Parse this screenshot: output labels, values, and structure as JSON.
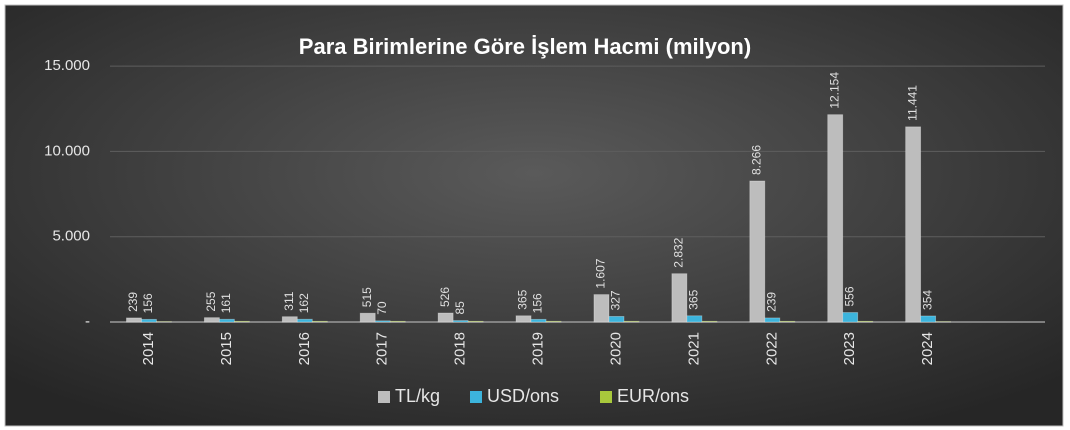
{
  "chart_data": {
    "type": "bar",
    "title": "Para Birimlerine  Göre İşlem Hacmi (milyon)",
    "categories": [
      "2014",
      "2015",
      "2016",
      "2017",
      "2018",
      "2019",
      "2020",
      "2021",
      "2022",
      "2023",
      "2024",
      null
    ],
    "series": [
      {
        "name": "TL/kg",
        "color": "#bdbdbd",
        "values": [
          239,
          255,
          311,
          515,
          526,
          365,
          1607,
          2832,
          8266,
          12154,
          11441,
          null
        ],
        "value_labels": [
          "239",
          "255",
          "311",
          "515",
          "526",
          "365",
          "1.607",
          "2.832",
          "8.266",
          "12.154",
          "11.441",
          null
        ]
      },
      {
        "name": "USD/ons",
        "color": "#3cb4dc",
        "values": [
          156,
          161,
          162,
          70,
          85,
          156,
          327,
          365,
          239,
          556,
          354,
          null
        ],
        "value_labels": [
          "156",
          "161",
          "162",
          "70",
          "85",
          "156",
          "327",
          "365",
          "239",
          "556",
          "354",
          null
        ]
      },
      {
        "name": "EUR/ons",
        "color": "#a8c83c",
        "values": [
          20,
          40,
          40,
          40,
          40,
          40,
          40,
          40,
          40,
          40,
          20,
          null
        ]
      }
    ],
    "ylim": [
      0,
      17000
    ],
    "yticks": [
      {
        "value": 0,
        "label": "-"
      },
      {
        "value": 5000,
        "label": "5.000"
      },
      {
        "value": 10000,
        "label": "10.000"
      },
      {
        "value": 15000,
        "label": "15.000"
      }
    ],
    "grid": true,
    "legend": "bottom"
  }
}
